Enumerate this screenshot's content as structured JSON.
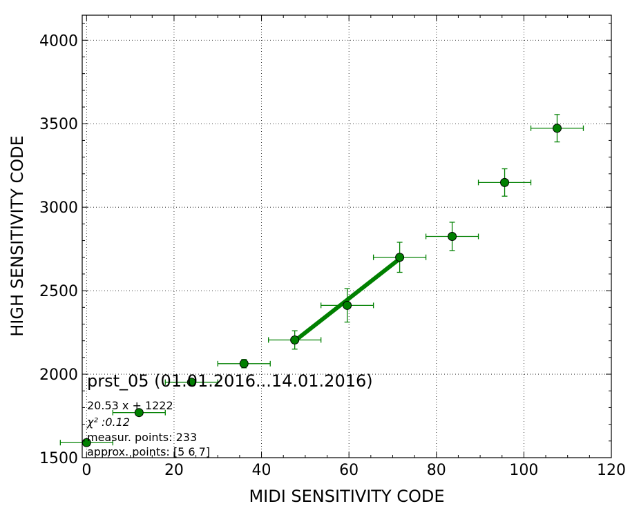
{
  "chart_data": {
    "type": "scatter",
    "title": "",
    "xlabel": "MIDI SENSITIVITY CODE",
    "ylabel": "HIGH SENSITIVITY CODE",
    "xlim": [
      -1,
      120
    ],
    "ylim": [
      1500,
      4150
    ],
    "xticks": [
      0,
      20,
      40,
      60,
      80,
      100,
      120
    ],
    "yticks": [
      1500,
      2000,
      2500,
      3000,
      3500,
      4000
    ],
    "grid": true,
    "colors": {
      "marker": "#008000",
      "errorbar": "#008000",
      "fit_line": "#008000",
      "marker_edge": "#000000"
    },
    "series": [
      {
        "points": [
          {
            "x": 0,
            "y": 1590,
            "xerr": 6,
            "yerr": 0
          },
          {
            "x": 12,
            "y": 1770,
            "xerr": 6,
            "yerr": 0
          },
          {
            "x": 24,
            "y": 1952,
            "xerr": 6,
            "yerr": 0
          },
          {
            "x": 36,
            "y": 2063,
            "xerr": 6,
            "yerr": 25
          },
          {
            "x": 47.6,
            "y": 2205,
            "xerr": 6,
            "yerr": 55
          },
          {
            "x": 59.6,
            "y": 2412,
            "xerr": 6,
            "yerr": 100
          },
          {
            "x": 71.6,
            "y": 2700,
            "xerr": 6,
            "yerr": 90
          },
          {
            "x": 83.6,
            "y": 2825,
            "xerr": 6,
            "yerr": 85
          },
          {
            "x": 95.6,
            "y": 3148,
            "xerr": 6,
            "yerr": 82
          },
          {
            "x": 107.6,
            "y": 3473,
            "xerr": 6,
            "yerr": 82
          }
        ]
      }
    ],
    "fit_line": {
      "x": [
        47.6,
        71.6
      ],
      "y": [
        2199,
        2691
      ]
    },
    "annotations": {
      "title_text": "prst_05 (01.01.2016...14.01.2016)",
      "fit": "20.53 x + 1222",
      "chi2": "χ² :0.12",
      "measur_points": "measur. points: 233",
      "approx_points": "approx. points: [5 6 7]"
    }
  }
}
